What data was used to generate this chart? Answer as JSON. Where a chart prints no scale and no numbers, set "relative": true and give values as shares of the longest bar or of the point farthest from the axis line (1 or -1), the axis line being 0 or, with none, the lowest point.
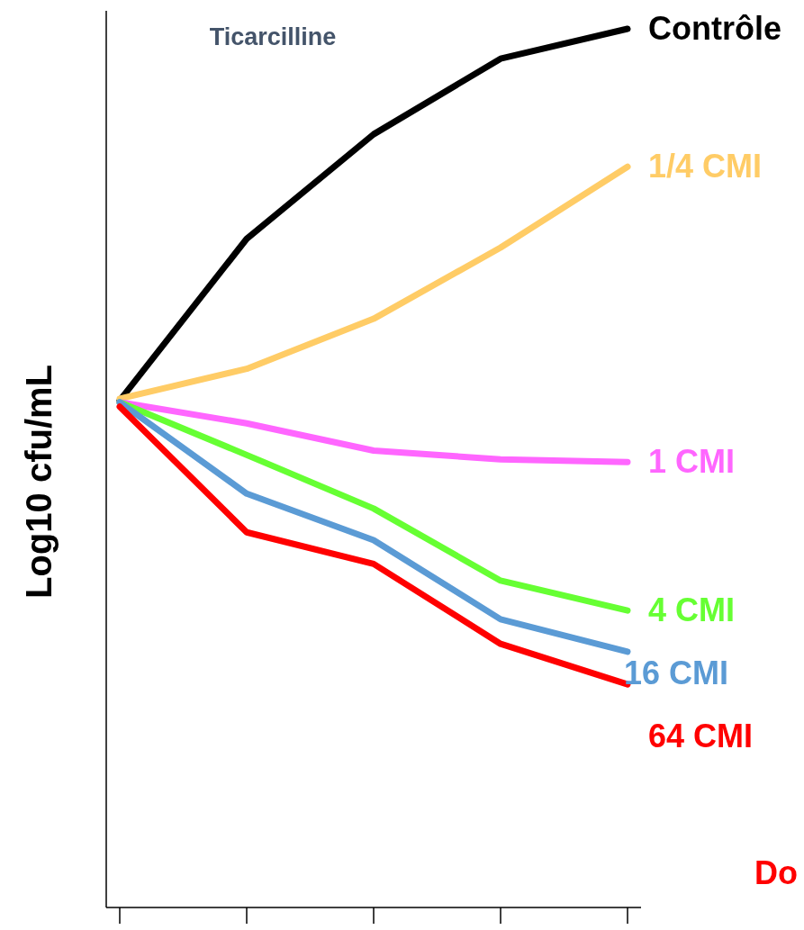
{
  "chart_data": {
    "type": "line",
    "title": "Ticarcilline",
    "ylabel": "Log10 cfu/mL",
    "relative": true,
    "categories": [
      null,
      null,
      null,
      null,
      null
    ],
    "legend": false,
    "annotations": [
      "Do"
    ],
    "series": [
      {
        "name": "Contrôle",
        "color": "#000000",
        "values": [
          0.577,
          0.761,
          0.88,
          0.966,
          1
        ]
      },
      {
        "name": "1/4 CMI",
        "color": "#ffcc66",
        "values": [
          0.579,
          0.613,
          0.67,
          0.751,
          0.843
        ]
      },
      {
        "name": "1 CMI",
        "color": "#ff66ff",
        "values": [
          0.575,
          0.551,
          0.52,
          0.51,
          0.507
        ]
      },
      {
        "name": "4 CMI",
        "color": "#66ff33",
        "values": [
          0.575,
          0.515,
          0.454,
          0.372,
          0.338
        ]
      },
      {
        "name": "16 CMI",
        "color": "#5b9bd5",
        "values": [
          0.575,
          0.471,
          0.418,
          0.328,
          0.291
        ]
      },
      {
        "name": "64 CMI",
        "color": "#ff0000",
        "values": [
          0.57,
          0.427,
          0.391,
          0.3,
          0.254
        ]
      }
    ]
  }
}
